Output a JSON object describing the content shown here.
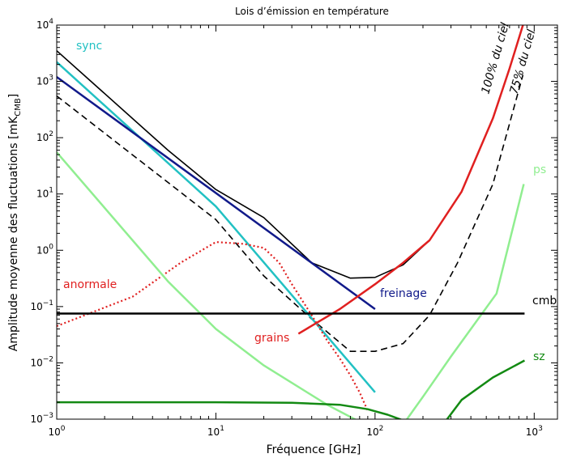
{
  "chart_data": {
    "type": "line",
    "title": "Lois d’émission en température",
    "xlabel": "Fréquence [GHz]",
    "ylabel": {
      "main": "Amplitude moyenne des fluctuations [mK",
      "sub": "CMB",
      "close": "]"
    },
    "x_scale": "log",
    "y_scale": "log",
    "xlim": [
      1,
      1400
    ],
    "ylim": [
      0.001,
      10000
    ],
    "x_ticks": [
      {
        "base": "10",
        "exp": "0",
        "value": 1
      },
      {
        "base": "10",
        "exp": "1",
        "value": 10
      },
      {
        "base": "10",
        "exp": "2",
        "value": 100
      },
      {
        "base": "10",
        "exp": "3",
        "value": 1000
      }
    ],
    "y_ticks": [
      {
        "base": "10",
        "exp": "−3",
        "value": 0.001
      },
      {
        "base": "10",
        "exp": "−2",
        "value": 0.01
      },
      {
        "base": "10",
        "exp": "−1",
        "value": 0.1
      },
      {
        "base": "10",
        "exp": "0",
        "value": 1
      },
      {
        "base": "10",
        "exp": "1",
        "value": 10
      },
      {
        "base": "10",
        "exp": "2",
        "value": 100
      },
      {
        "base": "10",
        "exp": "3",
        "value": 1000
      },
      {
        "base": "10",
        "exp": "4",
        "value": 10000
      }
    ],
    "series": [
      {
        "name": "sync",
        "color": "#22c1c3",
        "style": "solid",
        "width": 2.5,
        "points": [
          [
            1,
            2200
          ],
          [
            10,
            6
          ],
          [
            100,
            0.003
          ]
        ]
      },
      {
        "name": "freinage",
        "color": "#111a8a",
        "style": "solid",
        "width": 2.5,
        "points": [
          [
            1,
            1200
          ],
          [
            100,
            0.09
          ]
        ]
      },
      {
        "name": "anormale",
        "color": "#e02020",
        "style": "dotted",
        "width": 2.2,
        "points": [
          [
            1,
            0.045
          ],
          [
            3,
            0.15
          ],
          [
            6,
            0.6
          ],
          [
            10,
            1.4
          ],
          [
            15,
            1.3
          ],
          [
            20,
            1.1
          ],
          [
            25,
            0.6
          ],
          [
            30,
            0.25
          ],
          [
            40,
            0.07
          ],
          [
            50,
            0.025
          ],
          [
            60,
            0.012
          ],
          [
            70,
            0.006
          ],
          [
            80,
            0.003
          ],
          [
            90,
            0.0014
          ]
        ]
      },
      {
        "name": "grains",
        "color": "#e02020",
        "style": "solid",
        "width": 2.5,
        "points": [
          [
            33,
            0.033
          ],
          [
            60,
            0.09
          ],
          [
            100,
            0.25
          ],
          [
            150,
            0.6
          ],
          [
            220,
            1.5
          ],
          [
            350,
            11
          ],
          [
            550,
            220
          ],
          [
            700,
            1700
          ],
          [
            850,
            10000
          ]
        ]
      },
      {
        "name": "ps",
        "color": "#90ee90",
        "style": "solid",
        "width": 2.5,
        "points": [
          [
            1,
            55
          ],
          [
            5,
            0.28
          ],
          [
            10,
            0.04
          ],
          [
            20,
            0.009
          ],
          [
            50,
            0.0018
          ],
          [
            80,
            0.0009
          ],
          [
            150,
            0.0008
          ],
          [
            200,
            0.0025
          ],
          [
            300,
            0.013
          ],
          [
            580,
            0.17
          ],
          [
            860,
            15
          ]
        ]
      },
      {
        "name": "cmb",
        "color": "#000000",
        "style": "solid",
        "width": 2.5,
        "points": [
          [
            1,
            0.075
          ],
          [
            870,
            0.075
          ]
        ]
      },
      {
        "name": "sz",
        "color": "#138a13",
        "style": "solid",
        "width": 2.5,
        "segments": [
          [
            [
              1,
              0.002
            ],
            [
              10,
              0.002
            ],
            [
              30,
              0.00195
            ],
            [
              60,
              0.0018
            ],
            [
              90,
              0.0015
            ],
            [
              120,
              0.0012
            ],
            [
              150,
              0.00095
            ]
          ],
          [
            [
              280,
              0.00095
            ],
            [
              350,
              0.0022
            ],
            [
              550,
              0.0055
            ],
            [
              870,
              0.011
            ]
          ]
        ]
      }
    ],
    "sky_curves": [
      {
        "name": "100% du ciel",
        "color": "#000000",
        "style": "solid",
        "width": 1.6,
        "points": [
          [
            1,
            3500
          ],
          [
            5,
            60
          ],
          [
            10,
            12
          ],
          [
            20,
            3.8
          ],
          [
            40,
            0.6
          ],
          [
            70,
            0.32
          ],
          [
            100,
            0.33
          ],
          [
            150,
            0.55
          ],
          [
            220,
            1.5
          ],
          [
            350,
            11
          ],
          [
            550,
            220
          ],
          [
            700,
            1700
          ],
          [
            850,
            10000
          ]
        ]
      },
      {
        "name": "75% du ciel",
        "color": "#000000",
        "style": "dashed",
        "width": 1.6,
        "points": [
          [
            1,
            550
          ],
          [
            10,
            3.5
          ],
          [
            20,
            0.35
          ],
          [
            40,
            0.06
          ],
          [
            70,
            0.016
          ],
          [
            100,
            0.016
          ],
          [
            150,
            0.022
          ],
          [
            220,
            0.07
          ],
          [
            330,
            0.6
          ],
          [
            550,
            15
          ],
          [
            850,
            1300
          ]
        ]
      }
    ],
    "labels": {
      "sync": "sync",
      "freinage": "freinage",
      "anormale": "anormale",
      "grains": "grains",
      "ps": "ps",
      "cmb": "cmb",
      "sz": "sz",
      "sky100": "100% du ciel",
      "sky75": "75% du ciel"
    }
  }
}
